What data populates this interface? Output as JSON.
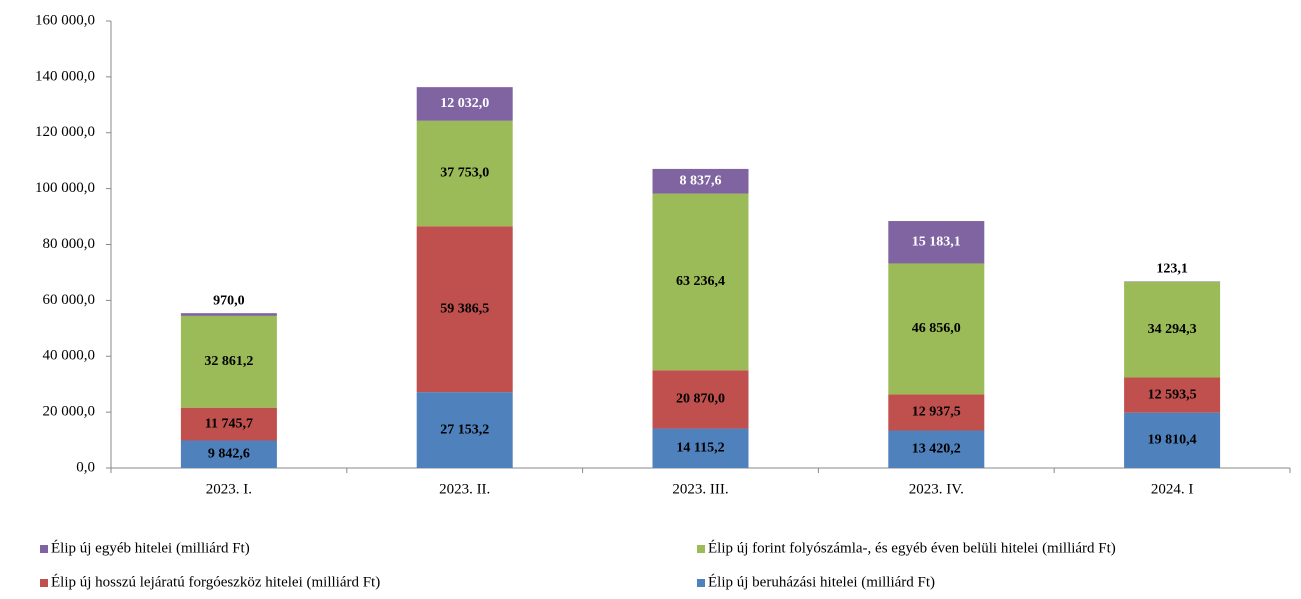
{
  "chart_data": {
    "type": "stacked_bar",
    "categories": [
      "2023. I.",
      "2023. II.",
      "2023. III.",
      "2023. IV.",
      "2024. I"
    ],
    "series": [
      {
        "name": "Élip új beruházási hitelei (milliárd Ft)",
        "color": "#4f81bd",
        "values": [
          9842.6,
          27153.2,
          14115.2,
          13420.2,
          19810.4
        ],
        "value_labels": [
          "9 842,6",
          "27 153,2",
          "14 115,2",
          "13 420,2",
          "19 810,4"
        ]
      },
      {
        "name": "Élip új hosszú lejáratú forgóeszköz hitelei (milliárd Ft)",
        "color": "#c0504d",
        "values": [
          11745.7,
          59386.5,
          20870.0,
          12937.5,
          12593.5
        ],
        "value_labels": [
          "11 745,7",
          "59 386,5",
          "20 870,0",
          "12 937,5",
          "12 593,5"
        ]
      },
      {
        "name": "Élip új forint folyószámla-, és egyéb éven belüli hitelei (milliárd Ft)",
        "color": "#9bbb59",
        "values": [
          32861.2,
          37753.0,
          63236.4,
          46856.0,
          34294.3
        ],
        "value_labels": [
          "32 861,2",
          "37 753,0",
          "63 236,4",
          "46 856,0",
          "34 294,3"
        ]
      },
      {
        "name": "Élip új egyéb hitelei (milliárd Ft)",
        "color": "#8064a2",
        "values": [
          970.0,
          12032.0,
          8837.6,
          15183.1,
          123.1
        ],
        "value_labels": [
          "970,0",
          "12 032,0",
          "8 837,6",
          "15 183,1",
          "123,1"
        ]
      }
    ],
    "ylim": [
      0,
      160000
    ],
    "yticks": [
      {
        "value": 0,
        "label": "0,0"
      },
      {
        "value": 20000,
        "label": "20 000,0"
      },
      {
        "value": 40000,
        "label": "40 000,0"
      },
      {
        "value": 60000,
        "label": "60 000,0"
      },
      {
        "value": 80000,
        "label": "80 000,0"
      },
      {
        "value": 100000,
        "label": "100 000,0"
      },
      {
        "value": 120000,
        "label": "120 000,0"
      },
      {
        "value": 140000,
        "label": "140 000,0"
      },
      {
        "value": 160000,
        "label": "160 000,0"
      }
    ],
    "legend": "bottom"
  }
}
